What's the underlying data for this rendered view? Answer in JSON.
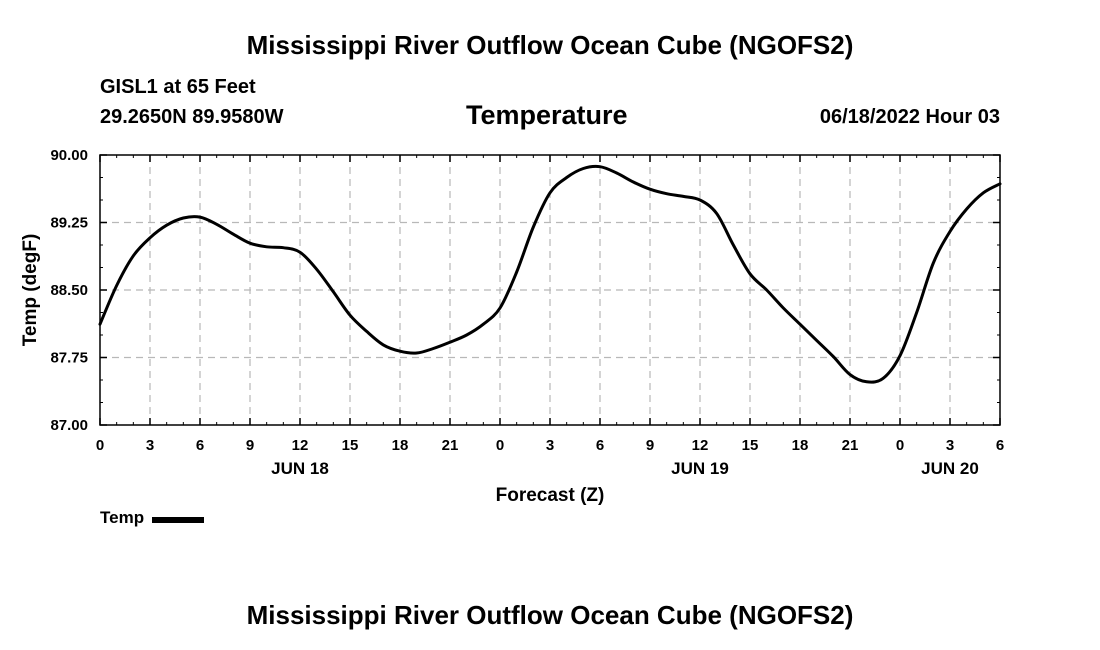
{
  "header": {
    "title": "Mississippi River Outflow Ocean Cube (NGOFS2)",
    "station": "GISL1 at 65 Feet",
    "coords": "29.2650N  89.9580W",
    "datetime": "06/18/2022 Hour 03"
  },
  "footer": {
    "title": "Mississippi River Outflow Ocean Cube (NGOFS2)"
  },
  "chart_data": {
    "type": "line",
    "title": "Temperature",
    "xlabel": "Forecast (Z)",
    "ylabel": "Temp (degF)",
    "xlim": [
      0,
      54
    ],
    "ylim": [
      87.0,
      90.0
    ],
    "grid": true,
    "y_ticks": [
      87.0,
      87.75,
      88.5,
      89.25,
      90.0
    ],
    "y_tick_labels": [
      "87.00",
      "87.75",
      "88.50",
      "89.25",
      "90.00"
    ],
    "x_ticks": [
      0,
      3,
      6,
      9,
      12,
      15,
      18,
      21,
      24,
      27,
      30,
      33,
      36,
      39,
      42,
      45,
      48,
      51,
      54
    ],
    "x_tick_labels": [
      "0",
      "3",
      "6",
      "9",
      "12",
      "15",
      "18",
      "21",
      "0",
      "3",
      "6",
      "9",
      "12",
      "15",
      "18",
      "21",
      "0",
      "3",
      "6"
    ],
    "date_labels": [
      {
        "x": 12,
        "label": "JUN 18"
      },
      {
        "x": 36,
        "label": "JUN 19"
      },
      {
        "x": 51,
        "label": "JUN 20"
      }
    ],
    "legend": "bottom-left",
    "series": [
      {
        "name": "Temp",
        "x": [
          0,
          1,
          2,
          3,
          4,
          5,
          6,
          7,
          8,
          9,
          10,
          11,
          12,
          13,
          14,
          15,
          16,
          17,
          18,
          19,
          20,
          21,
          22,
          23,
          24,
          25,
          26,
          27,
          28,
          29,
          30,
          31,
          32,
          33,
          34,
          35,
          36,
          37,
          38,
          39,
          40,
          41,
          42,
          43,
          44,
          45,
          46,
          47,
          48,
          49,
          50,
          51,
          52,
          53,
          54
        ],
        "values": [
          88.12,
          88.55,
          88.88,
          89.08,
          89.22,
          89.3,
          89.31,
          89.23,
          89.12,
          89.02,
          88.98,
          88.97,
          88.92,
          88.73,
          88.48,
          88.22,
          88.04,
          87.89,
          87.82,
          87.8,
          87.85,
          87.92,
          88.0,
          88.12,
          88.3,
          88.7,
          89.2,
          89.58,
          89.75,
          89.85,
          89.87,
          89.8,
          89.7,
          89.62,
          89.57,
          89.54,
          89.5,
          89.35,
          89.0,
          88.68,
          88.5,
          88.3,
          88.12,
          87.94,
          87.76,
          87.56,
          87.48,
          87.52,
          87.77,
          88.25,
          88.8,
          89.15,
          89.4,
          89.58,
          89.68
        ]
      }
    ]
  }
}
